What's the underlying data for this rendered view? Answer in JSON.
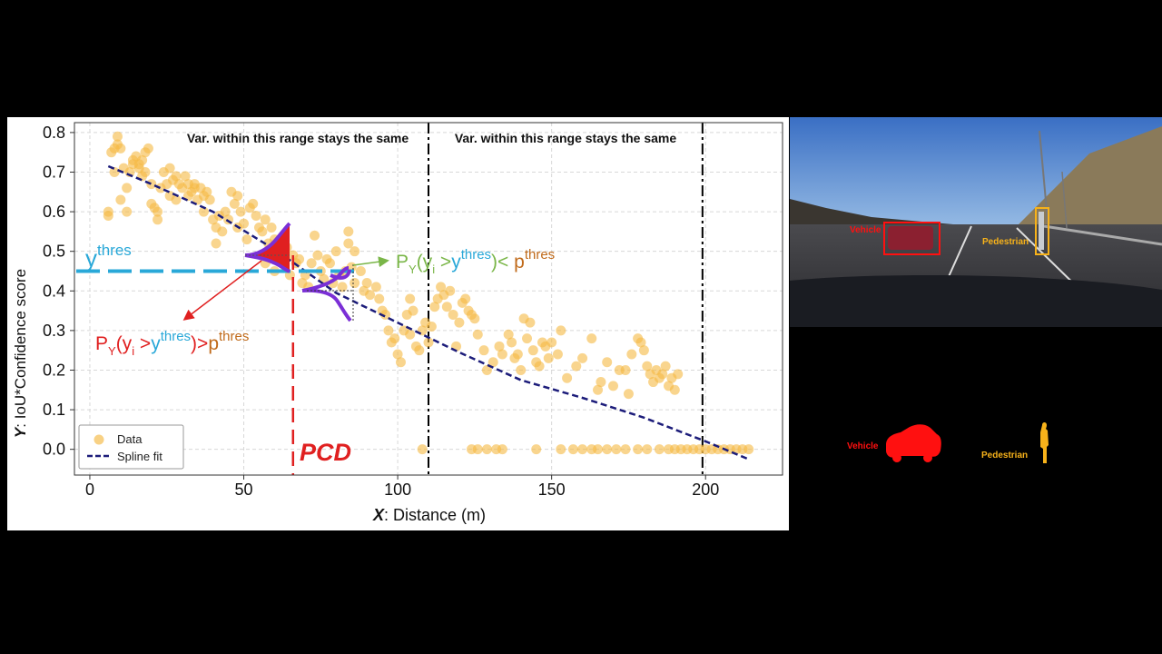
{
  "chart_data": {
    "type": "scatter",
    "xlabel_var": "X",
    "xlabel_text": ": Distance (m)",
    "ylabel_var": "Y",
    "ylabel_text": ":  IoU*Confidence score",
    "xlim": [
      -5,
      225
    ],
    "ylim": [
      -0.065,
      0.825
    ],
    "xticks": [
      0,
      50,
      100,
      150,
      200
    ],
    "yticks": [
      0.0,
      0.1,
      0.2,
      0.3,
      0.4,
      0.5,
      0.6,
      0.7,
      0.8
    ],
    "grid": true,
    "legend_position": "lower-left",
    "series": [
      {
        "name": "Data",
        "kind": "scatter",
        "color": "#f5b942",
        "points": [
          [
            6,
            0.59
          ],
          [
            6,
            0.6
          ],
          [
            7,
            0.75
          ],
          [
            8,
            0.76
          ],
          [
            8,
            0.7
          ],
          [
            9,
            0.79
          ],
          [
            9,
            0.77
          ],
          [
            10,
            0.76
          ],
          [
            10,
            0.63
          ],
          [
            11,
            0.71
          ],
          [
            12,
            0.66
          ],
          [
            12,
            0.6
          ],
          [
            13,
            0.7
          ],
          [
            14,
            0.72
          ],
          [
            14,
            0.73
          ],
          [
            15,
            0.74
          ],
          [
            16,
            0.71
          ],
          [
            16,
            0.72
          ],
          [
            17,
            0.69
          ],
          [
            17,
            0.73
          ],
          [
            18,
            0.75
          ],
          [
            18,
            0.7
          ],
          [
            19,
            0.76
          ],
          [
            20,
            0.67
          ],
          [
            20,
            0.62
          ],
          [
            21,
            0.61
          ],
          [
            22,
            0.58
          ],
          [
            22,
            0.6
          ],
          [
            23,
            0.66
          ],
          [
            24,
            0.7
          ],
          [
            25,
            0.67
          ],
          [
            26,
            0.71
          ],
          [
            26,
            0.64
          ],
          [
            27,
            0.68
          ],
          [
            28,
            0.69
          ],
          [
            28,
            0.63
          ],
          [
            29,
            0.67
          ],
          [
            30,
            0.66
          ],
          [
            31,
            0.69
          ],
          [
            32,
            0.67
          ],
          [
            32,
            0.64
          ],
          [
            33,
            0.65
          ],
          [
            34,
            0.66
          ],
          [
            34,
            0.67
          ],
          [
            35,
            0.63
          ],
          [
            36,
            0.66
          ],
          [
            37,
            0.6
          ],
          [
            37,
            0.64
          ],
          [
            38,
            0.65
          ],
          [
            39,
            0.63
          ],
          [
            40,
            0.58
          ],
          [
            41,
            0.56
          ],
          [
            41,
            0.52
          ],
          [
            42,
            0.59
          ],
          [
            43,
            0.55
          ],
          [
            44,
            0.6
          ],
          [
            45,
            0.58
          ],
          [
            46,
            0.65
          ],
          [
            47,
            0.62
          ],
          [
            48,
            0.64
          ],
          [
            48,
            0.56
          ],
          [
            49,
            0.6
          ],
          [
            50,
            0.57
          ],
          [
            51,
            0.53
          ],
          [
            52,
            0.61
          ],
          [
            53,
            0.62
          ],
          [
            54,
            0.59
          ],
          [
            55,
            0.56
          ],
          [
            56,
            0.55
          ],
          [
            57,
            0.58
          ],
          [
            57,
            0.47
          ],
          [
            58,
            0.52
          ],
          [
            59,
            0.56
          ],
          [
            60,
            0.53
          ],
          [
            60,
            0.45
          ],
          [
            61,
            0.48
          ],
          [
            62,
            0.52
          ],
          [
            63,
            0.49
          ],
          [
            64,
            0.51
          ],
          [
            65,
            0.44
          ],
          [
            66,
            0.49
          ],
          [
            67,
            0.47
          ],
          [
            68,
            0.48
          ],
          [
            69,
            0.42
          ],
          [
            70,
            0.44
          ],
          [
            71,
            0.41
          ],
          [
            72,
            0.47
          ],
          [
            73,
            0.54
          ],
          [
            74,
            0.49
          ],
          [
            75,
            0.45
          ],
          [
            76,
            0.43
          ],
          [
            77,
            0.48
          ],
          [
            78,
            0.47
          ],
          [
            79,
            0.42
          ],
          [
            80,
            0.5
          ],
          [
            81,
            0.44
          ],
          [
            82,
            0.41
          ],
          [
            83,
            0.45
          ],
          [
            84,
            0.52
          ],
          [
            84,
            0.55
          ],
          [
            85,
            0.46
          ],
          [
            86,
            0.42
          ],
          [
            86,
            0.5
          ],
          [
            88,
            0.45
          ],
          [
            89,
            0.4
          ],
          [
            90,
            0.42
          ],
          [
            91,
            0.39
          ],
          [
            93,
            0.41
          ],
          [
            94,
            0.38
          ],
          [
            95,
            0.35
          ],
          [
            96,
            0.34
          ],
          [
            97,
            0.3
          ],
          [
            98,
            0.27
          ],
          [
            99,
            0.28
          ],
          [
            100,
            0.24
          ],
          [
            101,
            0.22
          ],
          [
            102,
            0.3
          ],
          [
            103,
            0.34
          ],
          [
            104,
            0.38
          ],
          [
            104,
            0.29
          ],
          [
            105,
            0.35
          ],
          [
            106,
            0.26
          ],
          [
            107,
            0.25
          ],
          [
            108,
            0.3
          ],
          [
            109,
            0.32
          ],
          [
            110,
            0.27
          ],
          [
            111,
            0.31
          ],
          [
            112,
            0.36
          ],
          [
            113,
            0.38
          ],
          [
            114,
            0.41
          ],
          [
            115,
            0.39
          ],
          [
            116,
            0.36
          ],
          [
            117,
            0.4
          ],
          [
            118,
            0.34
          ],
          [
            119,
            0.26
          ],
          [
            120,
            0.32
          ],
          [
            121,
            0.37
          ],
          [
            122,
            0.38
          ],
          [
            123,
            0.35
          ],
          [
            124,
            0.34
          ],
          [
            125,
            0.33
          ],
          [
            126,
            0.29
          ],
          [
            128,
            0.25
          ],
          [
            129,
            0.2
          ],
          [
            131,
            0.22
          ],
          [
            133,
            0.26
          ],
          [
            134,
            0.24
          ],
          [
            136,
            0.29
          ],
          [
            137,
            0.27
          ],
          [
            138,
            0.23
          ],
          [
            139,
            0.24
          ],
          [
            140,
            0.2
          ],
          [
            141,
            0.33
          ],
          [
            142,
            0.28
          ],
          [
            143,
            0.32
          ],
          [
            144,
            0.25
          ],
          [
            145,
            0.22
          ],
          [
            146,
            0.21
          ],
          [
            147,
            0.27
          ],
          [
            148,
            0.26
          ],
          [
            149,
            0.23
          ],
          [
            150,
            0.27
          ],
          [
            152,
            0.24
          ],
          [
            153,
            0.3
          ],
          [
            155,
            0.18
          ],
          [
            158,
            0.21
          ],
          [
            160,
            0.23
          ],
          [
            163,
            0.28
          ],
          [
            165,
            0.15
          ],
          [
            166,
            0.17
          ],
          [
            168,
            0.22
          ],
          [
            170,
            0.16
          ],
          [
            172,
            0.2
          ],
          [
            174,
            0.2
          ],
          [
            175,
            0.14
          ],
          [
            176,
            0.24
          ],
          [
            178,
            0.28
          ],
          [
            179,
            0.27
          ],
          [
            180,
            0.25
          ],
          [
            181,
            0.21
          ],
          [
            182,
            0.19
          ],
          [
            183,
            0.17
          ],
          [
            184,
            0.2
          ],
          [
            185,
            0.18
          ],
          [
            186,
            0.19
          ],
          [
            187,
            0.21
          ],
          [
            188,
            0.16
          ],
          [
            189,
            0.18
          ],
          [
            190,
            0.15
          ],
          [
            191,
            0.19
          ],
          [
            108,
            0.0
          ],
          [
            124,
            0.0
          ],
          [
            126,
            0.0
          ],
          [
            129,
            0.0
          ],
          [
            132,
            0.0
          ],
          [
            134,
            0.0
          ],
          [
            145,
            0.0
          ],
          [
            153,
            0.0
          ],
          [
            157,
            0.0
          ],
          [
            160,
            0.0
          ],
          [
            163,
            0.0
          ],
          [
            165,
            0.0
          ],
          [
            168,
            0.0
          ],
          [
            171,
            0.0
          ],
          [
            174,
            0.0
          ],
          [
            178,
            0.0
          ],
          [
            181,
            0.0
          ],
          [
            185,
            0.0
          ],
          [
            188,
            0.0
          ],
          [
            190,
            0.0
          ],
          [
            192,
            0.0
          ],
          [
            194,
            0.0
          ],
          [
            196,
            0.0
          ],
          [
            198,
            0.0
          ],
          [
            200,
            0.0
          ],
          [
            202,
            0.0
          ],
          [
            204,
            0.0
          ],
          [
            206,
            0.0
          ],
          [
            208,
            0.0
          ],
          [
            210,
            0.0
          ],
          [
            212,
            0.0
          ],
          [
            214,
            0.0
          ]
        ]
      },
      {
        "name": "Spline fit",
        "kind": "line",
        "color": "#1c1c7a",
        "points": [
          [
            6,
            0.715
          ],
          [
            20,
            0.67
          ],
          [
            40,
            0.6
          ],
          [
            60,
            0.505
          ],
          [
            80,
            0.395
          ],
          [
            100,
            0.32
          ],
          [
            120,
            0.245
          ],
          [
            140,
            0.175
          ],
          [
            160,
            0.13
          ],
          [
            180,
            0.08
          ],
          [
            200,
            0.02
          ],
          [
            214,
            -0.025
          ]
        ]
      }
    ],
    "vlines": [
      {
        "x": 110,
        "color": "#000000"
      },
      {
        "x": 199,
        "color": "#000000"
      }
    ],
    "pcd": {
      "x": 66,
      "label": "PCD",
      "color": "#e02020"
    },
    "threshold": {
      "y": 0.45,
      "color": "#29a8d8"
    },
    "range_note": "Var. within this range stays the same",
    "colors": {
      "red": "#e02020",
      "green": "#7ab648",
      "orange": "#c06a1a",
      "blue": "#29a8d8",
      "purple": "#7b2fd6"
    }
  },
  "legend": {
    "data_label": "Data",
    "spline_label": "Spline fit"
  },
  "annotations": {
    "ythres_base": "y",
    "ythres_sup": "thres",
    "formula_green_prefix": "P",
    "formula_green_sub": "Y",
    "formula_green_mid": "(y",
    "formula_green_sub2": "i",
    "formula_green_gt": " >",
    "formula_green_y": "y",
    "formula_green_sup": "thres",
    "formula_green_rel": ")< ",
    "formula_green_p": "p",
    "formula_green_psup": "thres",
    "formula_red_prefix": "P",
    "formula_red_sub": "Y",
    "formula_red_mid": "(y",
    "formula_red_sub2": "i",
    "formula_red_gt": " >",
    "formula_red_y": "y",
    "formula_red_sup": "thres",
    "formula_red_rel": ")>",
    "formula_red_p": "p",
    "formula_red_psup": "thres"
  },
  "image_panels": {
    "photo_vehicle_label": "Vehicle",
    "photo_pedestrian_label": "Pedestrian",
    "mask_vehicle_label": "Vehicle",
    "mask_pedestrian_label": "Pedestrian",
    "vehicle_color": "#ff1010",
    "pedestrian_color": "#f7b21a"
  }
}
